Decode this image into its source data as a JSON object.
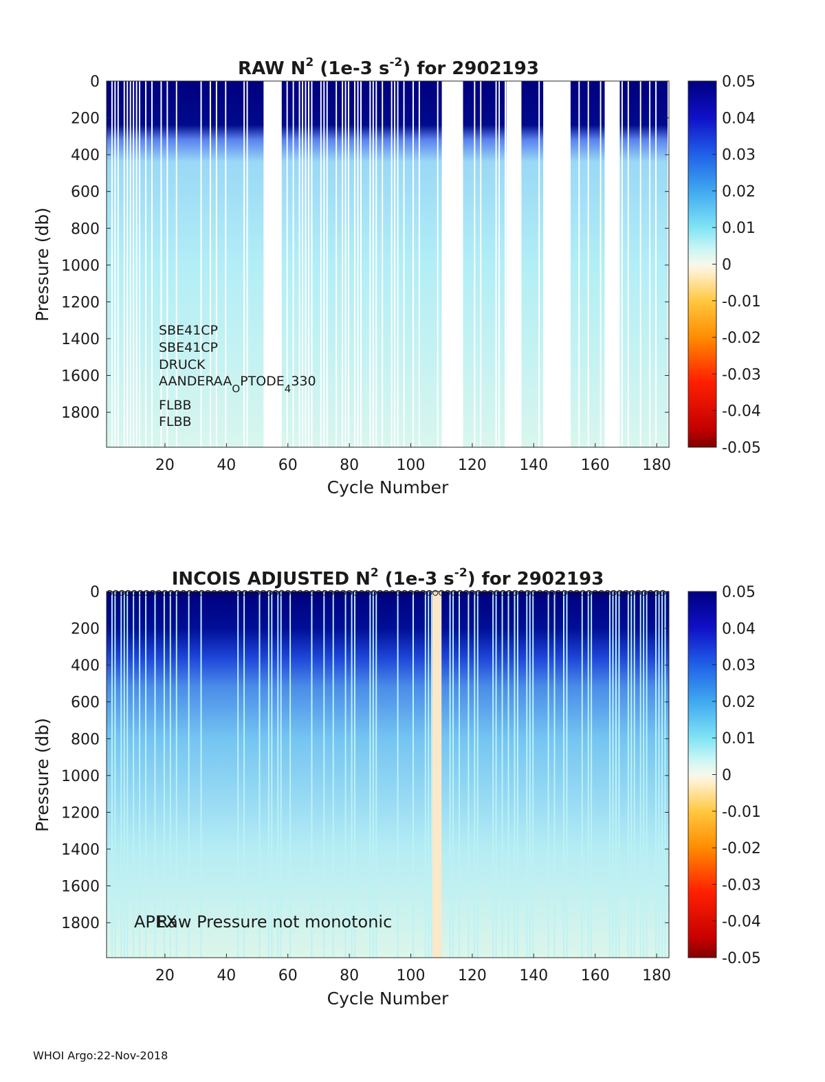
{
  "chart_data": [
    {
      "type": "heatmap",
      "title_prefix": "RAW N",
      "title_sup": "2",
      "title_mid": " (1e-3 s",
      "title_sup2": "-2",
      "title_suffix": ") for 2902193",
      "xlabel": "Cycle Number",
      "ylabel": "Pressure (db)",
      "xlim": [
        1,
        184
      ],
      "ylim": [
        0,
        1990
      ],
      "xticks": [
        "20",
        "40",
        "60",
        "80",
        "100",
        "120",
        "140",
        "160",
        "180"
      ],
      "yticks": [
        "0",
        "200",
        "400",
        "600",
        "800",
        "1000",
        "1200",
        "1400",
        "1600",
        "1800"
      ],
      "colorbar": {
        "min": -0.05,
        "max": 0.05,
        "ticks": [
          "0.05",
          "0.04",
          "0.03",
          "0.02",
          "0.01",
          "0",
          "-0.01",
          "-0.02",
          "-0.03",
          "-0.04",
          "-0.05"
        ]
      },
      "missing_cycles": [
        [
          52,
          57
        ],
        [
          110,
          116
        ],
        [
          131,
          135
        ],
        [
          143,
          151
        ],
        [
          163,
          167
        ]
      ],
      "annotations": [
        "SBE41CP",
        "SBE41CP",
        "DRUCK",
        "AANDERAA",
        "O",
        "PTODE",
        "4",
        "330",
        "FLBB",
        "FLBB"
      ]
    },
    {
      "type": "heatmap",
      "title_prefix": "INCOIS  ADJUSTED N",
      "title_sup": "2",
      "title_mid": " (1e-3 s",
      "title_sup2": "-2",
      "title_suffix": ") for 2902193",
      "xlabel": "Cycle Number",
      "ylabel": "Pressure (db)",
      "xlim": [
        1,
        184
      ],
      "ylim": [
        0,
        1990
      ],
      "xticks": [
        "20",
        "40",
        "60",
        "80",
        "100",
        "120",
        "140",
        "160",
        "180"
      ],
      "yticks": [
        "0",
        "200",
        "400",
        "600",
        "800",
        "1000",
        "1200",
        "1400",
        "1600",
        "1800"
      ],
      "colorbar": {
        "min": -0.05,
        "max": 0.05,
        "ticks": [
          "0.05",
          "0.04",
          "0.03",
          "0.02",
          "0.01",
          "0",
          "-0.01",
          "-0.02",
          "-0.03",
          "-0.04",
          "-0.05"
        ]
      },
      "annotations": [
        "APEX",
        "Raw Pressure not monotonic"
      ]
    }
  ],
  "footer": "WHOI Argo:22-Nov-2018"
}
